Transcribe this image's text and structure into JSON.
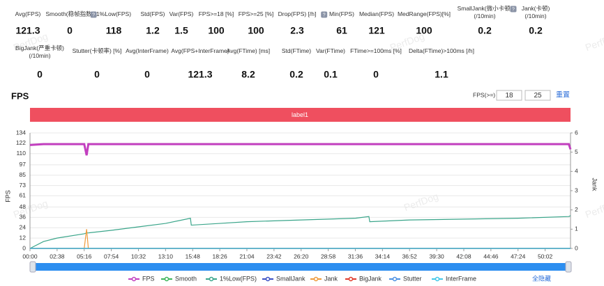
{
  "metrics": [
    [
      {
        "label": "Avg(FPS)",
        "value": 121.3
      },
      {
        "label": "Smooth(稳帧指数)",
        "value": 0,
        "help": true
      },
      {
        "label": "1%Low(FPS)",
        "value": 118
      },
      {
        "label": "Std(FPS)",
        "value": 1.2
      },
      {
        "label": "Var(FPS)",
        "value": 1.5
      },
      {
        "label": "FPS>=18 [%]",
        "value": 100
      },
      {
        "label": "FPS>=25 [%]",
        "value": 100
      },
      {
        "label": "Drop(FPS) [/h]",
        "value": 2.3,
        "help": true
      },
      {
        "label": "Min(FPS)",
        "value": 61
      },
      {
        "label": "Median(FPS)",
        "value": 121
      },
      {
        "label": "MedRange(FPS)[%]",
        "value": 100
      },
      {
        "label": "SmallJank(微小卡顿)\n(/10min)",
        "value": 0.2,
        "help": true
      },
      {
        "label": "Jank(卡顿)\n(/10min)",
        "value": 0.2
      }
    ],
    [
      {
        "label": "BigJank(严重卡顿)\n(/10min)",
        "value": 0
      },
      {
        "label": "Stutter(卡顿率) [%]",
        "value": 0
      },
      {
        "label": "Avg(InterFrame)",
        "value": 0
      },
      {
        "label": "Avg(FPS+InterFrame)",
        "value": 121.3
      },
      {
        "label": "Avg(FTime) [ms]",
        "value": 8.2
      },
      {
        "label": "Std(FTime)",
        "value": 0.2
      },
      {
        "label": "Var(FTime)",
        "value": 0.1
      },
      {
        "label": "FTime>=100ms [%]",
        "value": 0
      },
      {
        "label": "Delta(FTime)>100ms [/h]",
        "value": 1.1
      }
    ]
  ],
  "watermark": "PerfDog",
  "controls": {
    "threshold_label": "FPS(>=)",
    "threshold_1": 18,
    "threshold_2": 25,
    "reset": "重置",
    "hide_all": "全隐藏"
  },
  "chart_data": {
    "type": "line",
    "title": "FPS",
    "band_label": "label1",
    "band_color": "#ef4f5f",
    "y_label": "FPS",
    "y2_label": "Jank",
    "grid": true,
    "x": [
      0,
      79,
      158,
      316,
      330,
      340,
      474,
      632,
      790,
      935,
      940,
      1106,
      1264,
      1422,
      1580,
      1738,
      1896,
      1975,
      1980,
      2212,
      2528,
      2844,
      3140,
      3150
    ],
    "xlim": [
      0,
      3150
    ],
    "xticks": [
      {
        "value": 0,
        "label": "00:00"
      },
      {
        "value": 158,
        "label": "02:38"
      },
      {
        "value": 316,
        "label": "05:16"
      },
      {
        "value": 474,
        "label": "07:54"
      },
      {
        "value": 632,
        "label": "10:32"
      },
      {
        "value": 790,
        "label": "13:10"
      },
      {
        "value": 948,
        "label": "15:48"
      },
      {
        "value": 1106,
        "label": "18:26"
      },
      {
        "value": 1264,
        "label": "21:04"
      },
      {
        "value": 1422,
        "label": "23:42"
      },
      {
        "value": 1580,
        "label": "26:20"
      },
      {
        "value": 1738,
        "label": "28:58"
      },
      {
        "value": 1896,
        "label": "31:36"
      },
      {
        "value": 2054,
        "label": "34:14"
      },
      {
        "value": 2212,
        "label": "36:52"
      },
      {
        "value": 2370,
        "label": "39:30"
      },
      {
        "value": 2528,
        "label": "42:08"
      },
      {
        "value": 2686,
        "label": "44:46"
      },
      {
        "value": 2844,
        "label": "47:24"
      },
      {
        "value": 3002,
        "label": "50:02"
      }
    ],
    "ylim": [
      0,
      134
    ],
    "yticks": [
      0,
      12,
      24,
      36,
      48,
      61,
      73,
      85,
      97,
      110,
      122,
      134
    ],
    "y2lim": [
      0,
      6
    ],
    "y2ticks": [
      0,
      1,
      2,
      3,
      4,
      5,
      6
    ],
    "series": [
      {
        "name": "FPS",
        "color": "#c23fbf",
        "values": [
          120,
          121,
          121,
          121,
          108,
          121,
          121,
          121,
          121,
          121,
          121,
          121,
          121,
          121,
          121,
          121,
          121,
          121,
          121,
          121,
          121,
          121,
          121,
          115
        ]
      },
      {
        "name": "Smooth",
        "color": "#3cb55a",
        "values": [
          0,
          0,
          0,
          0,
          0,
          0,
          0,
          0,
          0,
          0,
          0,
          0,
          0,
          0,
          0,
          0,
          0,
          0,
          0,
          0,
          0,
          0,
          0,
          0
        ]
      },
      {
        "name": "1%Low(FPS)",
        "color": "#3aa58a",
        "values": [
          0,
          8,
          12,
          17,
          18,
          18,
          21,
          25,
          29,
          35,
          27,
          29,
          31,
          32,
          33,
          34,
          35,
          37,
          31,
          33,
          34,
          35,
          37,
          38
        ]
      },
      {
        "name": "SmallJank",
        "color": "#3a4fc4",
        "axis": "y2",
        "values": [
          0,
          0,
          0,
          0,
          0,
          0,
          0,
          0,
          0,
          0,
          0,
          0,
          0,
          0,
          0,
          0,
          0,
          0,
          0,
          0,
          0,
          0,
          0,
          0
        ]
      },
      {
        "name": "Jank",
        "color": "#ef9a3a",
        "axis": "y2",
        "values": [
          0,
          0,
          0,
          0,
          1,
          0,
          0,
          0,
          0,
          0,
          0,
          0,
          0,
          0,
          0,
          0,
          0,
          0,
          0,
          0,
          0,
          0,
          0,
          0
        ]
      },
      {
        "name": "BigJank",
        "color": "#e03a2a",
        "axis": "y2",
        "values": [
          0,
          0,
          0,
          0,
          0,
          0,
          0,
          0,
          0,
          0,
          0,
          0,
          0,
          0,
          0,
          0,
          0,
          0,
          0,
          0,
          0,
          0,
          0,
          0
        ]
      },
      {
        "name": "Stutter",
        "color": "#4a90e2",
        "values": [
          0,
          0,
          0,
          0,
          0,
          0,
          0,
          0,
          0,
          0,
          0,
          0,
          0,
          0,
          0,
          0,
          0,
          0,
          0,
          0,
          0,
          0,
          0,
          0
        ]
      },
      {
        "name": "InterFrame",
        "color": "#40c8e8",
        "values": [
          0,
          0,
          0,
          0,
          0,
          0,
          0,
          0,
          0,
          0,
          0,
          0,
          0,
          0,
          0,
          0,
          0,
          0,
          0,
          0,
          0,
          0,
          0,
          0
        ]
      }
    ]
  }
}
